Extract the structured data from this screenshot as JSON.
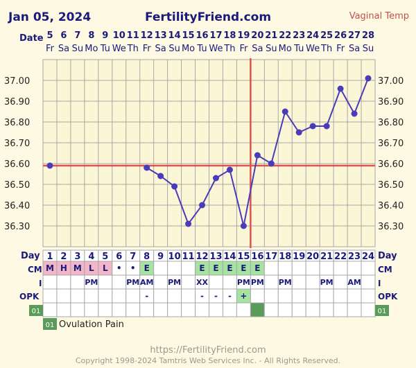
{
  "header": {
    "date": "Jan 05, 2024",
    "site": "FertilityFriend.com",
    "temp_type": "Vaginal Temp"
  },
  "labels": {
    "date_row": "Date",
    "day_row": "Day",
    "cm_row": "CM",
    "i_row": "I",
    "opk_row": "OPK",
    "custom_code": "01",
    "legend_code": "01",
    "legend_text": "Ovulation Pain"
  },
  "footer": {
    "url": "https://FertilityFriend.com",
    "copyright": "Copyright 1998-2024 Tamtris Web Services Inc. - All Rights Reserved."
  },
  "colors": {
    "background": "#fdf9e3",
    "grid_line": "#a8a8a8",
    "temp_line": "#4a3bb8",
    "coverline": "#d9534f",
    "cm_pink": "#f2b6c8",
    "cm_green": "#a6e3a1",
    "pain_green": "#5a9a5a",
    "title_blue": "#1a1a7a",
    "temp_type_red": "#c0504d"
  },
  "chart_data": {
    "type": "line",
    "ylim": [
      36.2,
      37.1
    ],
    "y_ticks": [
      "37.00",
      "36.90",
      "36.80",
      "36.70",
      "36.60",
      "36.50",
      "36.40",
      "36.30"
    ],
    "dates": [
      "5",
      "6",
      "7",
      "8",
      "9",
      "10",
      "11",
      "12",
      "13",
      "14",
      "15",
      "16",
      "17",
      "18",
      "19",
      "20",
      "21",
      "22",
      "23",
      "24",
      "25",
      "26",
      "27",
      "28"
    ],
    "weekdays": [
      "Fr",
      "Sa",
      "Su",
      "Mo",
      "Tu",
      "We",
      "Th",
      "Fr",
      "Sa",
      "Su",
      "Mo",
      "Tu",
      "We",
      "Th",
      "Fr",
      "Sa",
      "Su",
      "Mo",
      "Tu",
      "We",
      "Th",
      "Fr",
      "Sa",
      "Su"
    ],
    "cycle_days": [
      "1",
      "2",
      "3",
      "4",
      "5",
      "6",
      "7",
      "8",
      "9",
      "10",
      "11",
      "12",
      "13",
      "14",
      "15",
      "16",
      "17",
      "18",
      "19",
      "20",
      "21",
      "22",
      "23",
      "24"
    ],
    "temps": [
      36.59,
      null,
      null,
      null,
      null,
      null,
      null,
      36.58,
      36.54,
      36.49,
      36.31,
      36.4,
      36.53,
      36.57,
      36.3,
      36.64,
      36.6,
      36.85,
      36.75,
      36.78,
      36.78,
      36.96,
      36.84,
      37.01
    ],
    "coverline": 36.59,
    "ovulation_day": 15,
    "cm": [
      "M",
      "H",
      "M",
      "L",
      "L",
      "•",
      "•",
      "E",
      "",
      "",
      "",
      "E",
      "E",
      "E",
      "E",
      "E",
      "",
      "",
      "",
      "",
      "",
      "",
      "",
      ""
    ],
    "cm_colors": [
      "pink",
      "pink",
      "pink",
      "pink",
      "pink",
      "",
      "",
      "green",
      "",
      "",
      "",
      "green",
      "green",
      "green",
      "green",
      "green",
      "",
      "",
      "",
      "",
      "",
      "",
      "",
      ""
    ],
    "intercourse": [
      "",
      "",
      "",
      "PM",
      "",
      "",
      "PM",
      "AM",
      "",
      "PM",
      "",
      "XX",
      "",
      "",
      "PM",
      "PM",
      "",
      "PM",
      "",
      "",
      "PM",
      "",
      "AM",
      ""
    ],
    "opk": [
      "",
      "",
      "",
      "",
      "",
      "",
      "",
      "-",
      "",
      "",
      "",
      "-",
      "-",
      "-",
      "+",
      "",
      "",
      "",
      "",
      "",
      "",
      "",
      "",
      ""
    ],
    "opk_positive": [
      false,
      false,
      false,
      false,
      false,
      false,
      false,
      false,
      false,
      false,
      false,
      false,
      false,
      false,
      true,
      false,
      false,
      false,
      false,
      false,
      false,
      false,
      false,
      false
    ],
    "ovulation_pain": [
      false,
      false,
      false,
      false,
      false,
      false,
      false,
      false,
      false,
      false,
      false,
      false,
      false,
      false,
      false,
      true,
      false,
      false,
      false,
      false,
      false,
      false,
      false,
      false
    ]
  }
}
